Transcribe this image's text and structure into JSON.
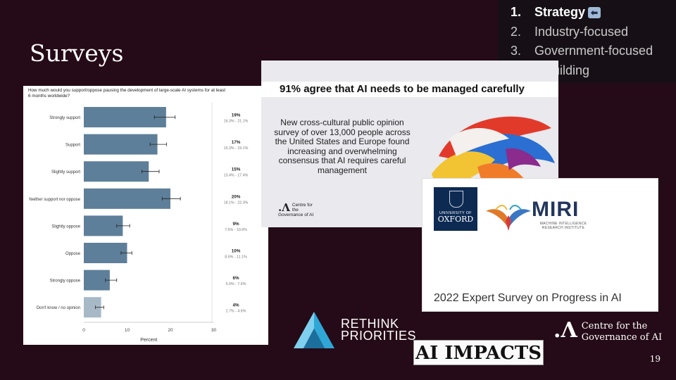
{
  "slide": {
    "title": "Surveys",
    "page_number": "19"
  },
  "agenda": {
    "items": [
      {
        "number": "1.",
        "label": "Strategy",
        "active": true
      },
      {
        "number": "2.",
        "label": "Industry-focused",
        "active": false
      },
      {
        "number": "3.",
        "label": "Government-focused",
        "active": false
      },
      {
        "number": "",
        "label": "d-building",
        "active": false
      }
    ],
    "arrow_icon": "back-arrow-icon",
    "arrow_glyph": "⬅"
  },
  "chart_data": {
    "type": "bar",
    "orientation": "horizontal",
    "title": "How much would you support/oppose pausing the development of large-scale AI systems for at least 6 months worldwide?",
    "xlabel": "Percent",
    "xlim": [
      0,
      30
    ],
    "xticks": [
      "0",
      "10",
      "20",
      "30"
    ],
    "categories": [
      "Strongly support",
      "Support",
      "Slightly support",
      "Neither support nor oppose",
      "Slightly oppose",
      "Oppose",
      "Strongly oppose",
      "Don't know / no opinion"
    ],
    "values": [
      19,
      17,
      15,
      20,
      9,
      10,
      6,
      4
    ],
    "value_labels": [
      "19%",
      "17%",
      "15%",
      "20%",
      "9%",
      "10%",
      "6%",
      "4%"
    ],
    "ci_low": [
      16.3,
      15.3,
      13.4,
      18.1,
      7.6,
      8.6,
      5.0,
      2.7
    ],
    "ci_high": [
      21.1,
      19.1,
      17.4,
      22.3,
      10.6,
      11.1,
      7.6,
      4.6
    ],
    "ci_labels": [
      "16.3% - 21.1%",
      "15.3% - 19.1%",
      "13.4% - 17.4%",
      "18.1% - 22.3%",
      "7.6% - 10.6%",
      "8.6% - 11.1%",
      "5.0% - 7.6%",
      "2.7% - 4.6%"
    ],
    "colors": {
      "bar": "#5e7f99",
      "bar_last": "#a7b9c7"
    }
  },
  "governance_card": {
    "headline": "91% agree that AI needs to be managed carefully",
    "body": "New cross-cultural public opinion survey of over 13,000 people across the United States and Europe found increasing and overwhelming consensus that AI requires careful management",
    "logo_line1": "Centre for the",
    "logo_line2": "Governance of AI"
  },
  "research_card": {
    "oxford_line1": "UNIVERSITY OF",
    "oxford_line2": "OXFORD",
    "miri_name": "MIRI",
    "miri_subtitle": "MACHINE INTELLIGENCE RESEARCH INSTITUTE",
    "caption": "2022 Expert Survey on Progress in AI"
  },
  "logos": {
    "rethink_line1": "RETHINK",
    "rethink_line2": "PRIORITIES",
    "ai_impacts": "AI IMPACTS",
    "cga_line1": "Centre for the",
    "cga_line2": "Governance of AI"
  },
  "colors": {
    "background": "#250b17",
    "chart_bar": "#5e7f99",
    "miri_navy": "#22365d",
    "oxford_blue": "#0d2a52"
  }
}
